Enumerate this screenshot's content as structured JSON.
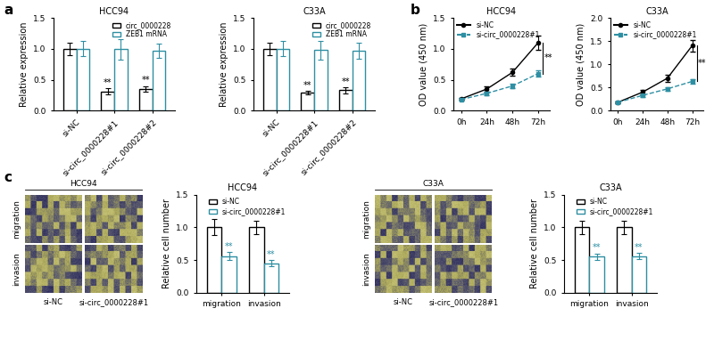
{
  "panel_labels": [
    "a",
    "b",
    "c"
  ],
  "chart_data": [
    {
      "type": "bar",
      "title": "HCC94",
      "y_label": "Relative expression",
      "categories": [
        "si-NC",
        "si-circ_0000228#1",
        "si-circ_0000228#2"
      ],
      "series": [
        {
          "name": "circ_0000228",
          "color": "#000000",
          "values": [
            1.0,
            0.31,
            0.35
          ],
          "errors": [
            0.1,
            0.05,
            0.05
          ],
          "annotations": [
            null,
            "**",
            "**"
          ]
        },
        {
          "name": "ZEB1 mRNA",
          "color": "#2e8fa3",
          "values": [
            1.0,
            0.99,
            0.97
          ],
          "errors": [
            0.12,
            0.17,
            0.12
          ]
        }
      ],
      "ylim": [
        0.0,
        1.5
      ],
      "yticks": [
        0.0,
        0.5,
        1.0,
        1.5
      ],
      "legend": "upper right"
    },
    {
      "type": "bar",
      "title": "C33A",
      "y_label": "Relative expression",
      "categories": [
        "si-NC",
        "si-circ_0000228#1",
        "si-circ_0000228#2"
      ],
      "series": [
        {
          "name": "circ_0000228",
          "color": "#000000",
          "values": [
            1.0,
            0.29,
            0.33
          ],
          "errors": [
            0.1,
            0.03,
            0.05
          ],
          "annotations": [
            null,
            "**",
            "**"
          ]
        },
        {
          "name": "ZEB1 mRNA",
          "color": "#2e8fa3",
          "values": [
            1.0,
            0.98,
            0.97
          ],
          "errors": [
            0.12,
            0.15,
            0.13
          ]
        }
      ],
      "ylim": [
        0.0,
        1.5
      ],
      "yticks": [
        0.0,
        0.5,
        1.0,
        1.5
      ],
      "legend": "upper right"
    },
    {
      "type": "line",
      "title": "HCC94",
      "y_label": "OD value (450 nm)",
      "categories": [
        "0h",
        "24h",
        "48h",
        "72h"
      ],
      "series": [
        {
          "name": "si-NC",
          "color": "#000000",
          "marker": "o",
          "line_style": "solid",
          "values": [
            0.19,
            0.35,
            0.62,
            1.1
          ],
          "errors": [
            0.02,
            0.05,
            0.06,
            0.12
          ]
        },
        {
          "name": "si-circ_0000228#1",
          "color": "#2e8fa3",
          "marker": "s",
          "line_style": "dashed",
          "values": [
            0.18,
            0.28,
            0.4,
            0.6
          ],
          "errors": [
            0.02,
            0.03,
            0.04,
            0.05
          ]
        }
      ],
      "annotations": [
        {
          "text": "**",
          "x": "72h"
        }
      ],
      "ylim": [
        0.0,
        1.5
      ],
      "yticks": [
        0.0,
        0.5,
        1.0,
        1.5
      ],
      "legend": "upper left"
    },
    {
      "type": "line",
      "title": "C33A",
      "y_label": "OD value (450 nm)",
      "categories": [
        "0h",
        "24h",
        "48h",
        "72h"
      ],
      "series": [
        {
          "name": "si-NC",
          "color": "#000000",
          "marker": "o",
          "line_style": "solid",
          "values": [
            0.18,
            0.4,
            0.7,
            1.4
          ],
          "errors": [
            0.02,
            0.05,
            0.08,
            0.12
          ]
        },
        {
          "name": "si-circ_0000228#1",
          "color": "#2e8fa3",
          "marker": "s",
          "line_style": "dashed",
          "values": [
            0.18,
            0.33,
            0.47,
            0.63
          ],
          "errors": [
            0.02,
            0.03,
            0.04,
            0.05
          ]
        }
      ],
      "annotations": [
        {
          "text": "**",
          "x": "72h"
        }
      ],
      "ylim": [
        0.0,
        2.0
      ],
      "yticks": [
        0.0,
        0.5,
        1.0,
        1.5,
        2.0
      ],
      "legend": "upper left"
    },
    {
      "type": "bar",
      "title": "HCC94",
      "y_label": "Relative cell number",
      "categories": [
        "migration",
        "invasion"
      ],
      "series": [
        {
          "name": "si-NC",
          "color": "#000000",
          "values": [
            1.0,
            1.0
          ],
          "errors": [
            0.12,
            0.1
          ]
        },
        {
          "name": "si-circ_0000228#1",
          "color": "#2e8fa3",
          "values": [
            0.56,
            0.45
          ],
          "errors": [
            0.06,
            0.05
          ],
          "annotations": [
            "**",
            "**"
          ]
        }
      ],
      "ylim": [
        0.0,
        1.5
      ],
      "yticks": [
        0.0,
        0.5,
        1.0,
        1.5
      ],
      "legend": "upper right"
    },
    {
      "type": "bar",
      "title": "C33A",
      "y_label": "Relative cell number",
      "categories": [
        "migration",
        "invasion"
      ],
      "series": [
        {
          "name": "si-NC",
          "color": "#000000",
          "values": [
            1.0,
            1.0
          ],
          "errors": [
            0.1,
            0.1
          ]
        },
        {
          "name": "si-circ_0000228#1",
          "color": "#2e8fa3",
          "values": [
            0.55,
            0.56
          ],
          "errors": [
            0.05,
            0.05
          ],
          "annotations": [
            "**",
            "**"
          ]
        }
      ],
      "ylim": [
        0.0,
        1.5
      ],
      "yticks": [
        0.0,
        0.5,
        1.0,
        1.5
      ],
      "legend": "upper right"
    }
  ],
  "micrographs": [
    {
      "title": "HCC94",
      "rows": [
        "migration",
        "invasion"
      ],
      "columns": [
        "si-NC",
        "si-circ_0000228#1"
      ]
    },
    {
      "title": "C33A",
      "rows": [
        "migration",
        "invasion"
      ],
      "columns": [
        "si-NC",
        "si-circ_0000228#1"
      ]
    }
  ]
}
